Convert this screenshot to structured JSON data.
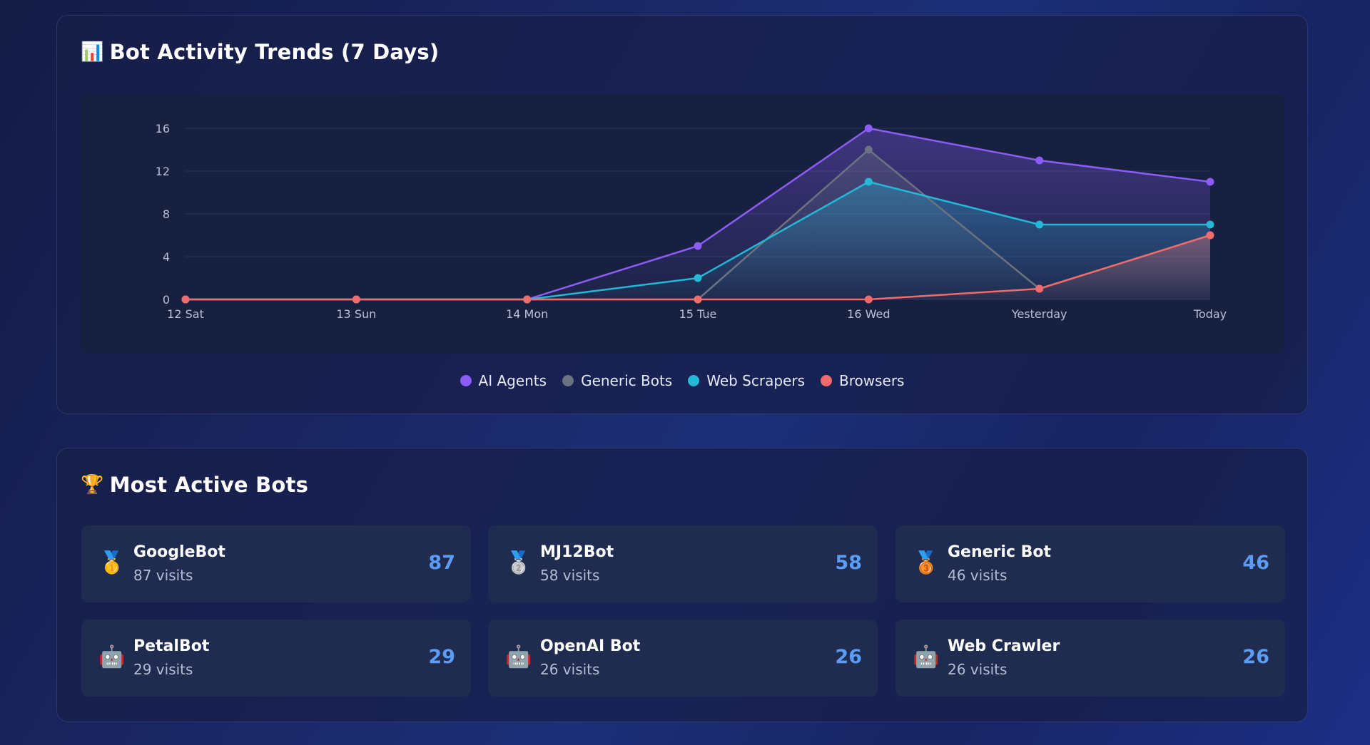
{
  "trends": {
    "title": "Bot Activity Trends (7 Days)",
    "title_icon": "📊",
    "legend": [
      {
        "label": "AI Agents",
        "color": "#8b5cf6"
      },
      {
        "label": "Generic Bots",
        "color": "#6b7280"
      },
      {
        "label": "Web Scrapers",
        "color": "#22b8d6"
      },
      {
        "label": "Browsers",
        "color": "#f16b6b"
      }
    ]
  },
  "chart_data": {
    "type": "area",
    "categories": [
      "12 Sat",
      "13 Sun",
      "14 Mon",
      "15 Tue",
      "16 Wed",
      "Yesterday",
      "Today"
    ],
    "ylim": [
      0,
      16
    ],
    "yticks": [
      0,
      4,
      8,
      12,
      16
    ],
    "grid": true,
    "legend_position": "bottom",
    "series": [
      {
        "name": "AI Agents",
        "color": "#8b5cf6",
        "values": [
          0,
          0,
          0,
          5,
          16,
          13,
          11
        ]
      },
      {
        "name": "Generic Bots",
        "color": "#6b7280",
        "values": [
          0,
          0,
          0,
          0,
          14,
          1,
          6
        ]
      },
      {
        "name": "Web Scrapers",
        "color": "#22b8d6",
        "values": [
          0,
          0,
          0,
          2,
          11,
          7,
          7
        ]
      },
      {
        "name": "Browsers",
        "color": "#f16b6b",
        "values": [
          0,
          0,
          0,
          0,
          0,
          1,
          6
        ]
      }
    ]
  },
  "bots": {
    "title": "Most Active Bots",
    "title_icon": "🏆",
    "items": [
      {
        "icon": "🥇",
        "icon_name": "gold-medal-icon",
        "name": "GoogleBot",
        "visits": "87 visits",
        "count": "87"
      },
      {
        "icon": "🥈",
        "icon_name": "silver-medal-icon",
        "name": "MJ12Bot",
        "visits": "58 visits",
        "count": "58"
      },
      {
        "icon": "🥉",
        "icon_name": "bronze-medal-icon",
        "name": "Generic Bot",
        "visits": "46 visits",
        "count": "46"
      },
      {
        "icon": "🤖",
        "icon_name": "robot-icon",
        "name": "PetalBot",
        "visits": "29 visits",
        "count": "29"
      },
      {
        "icon": "🤖",
        "icon_name": "robot-icon",
        "name": "OpenAI Bot",
        "visits": "26 visits",
        "count": "26"
      },
      {
        "icon": "🤖",
        "icon_name": "robot-icon",
        "name": "Web Crawler",
        "visits": "26 visits",
        "count": "26"
      }
    ]
  }
}
